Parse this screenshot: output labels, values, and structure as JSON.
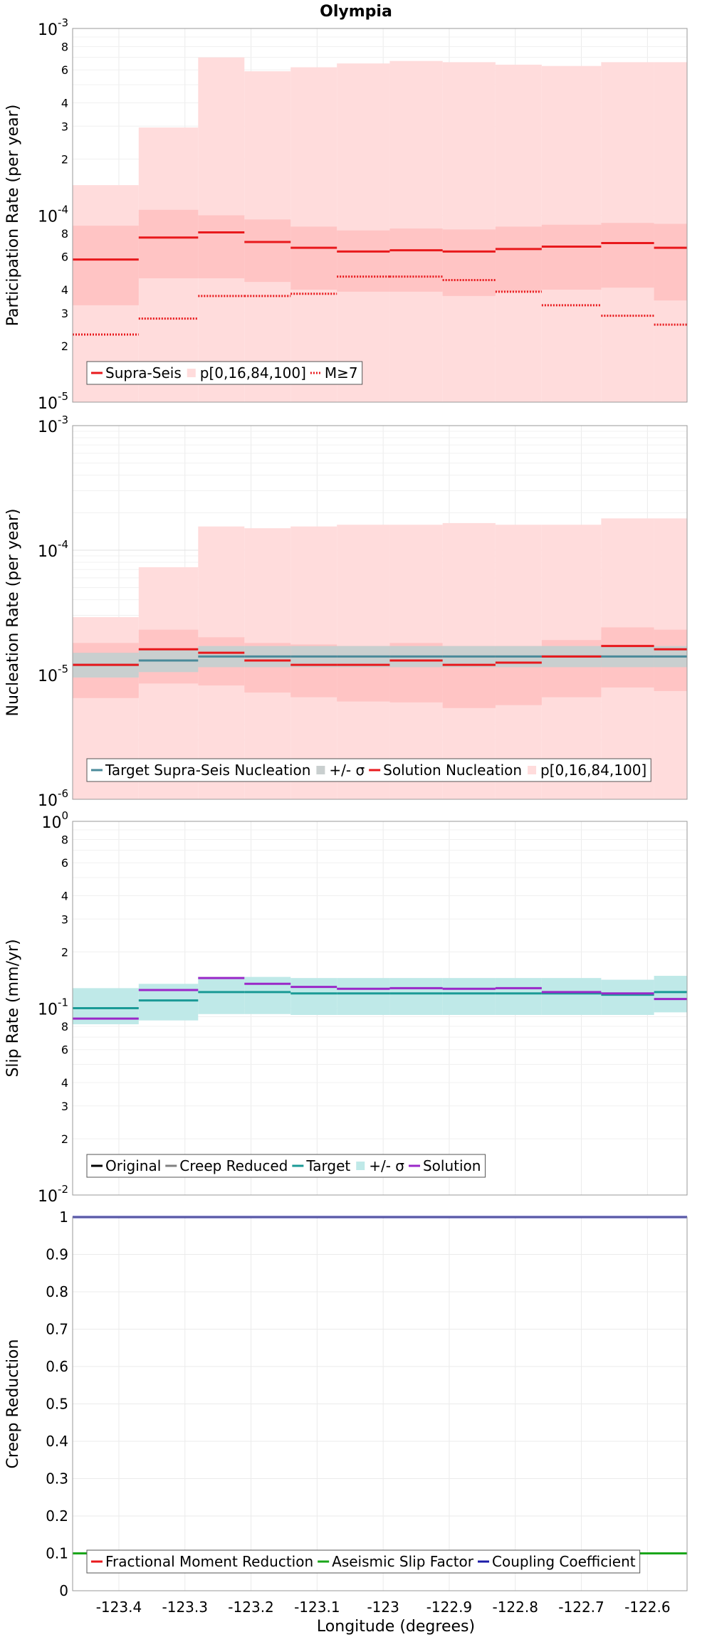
{
  "chart_data": {
    "title": "Olympia",
    "xlabel": "Longitude (degrees)",
    "x_ticks": [
      -123.4,
      -123.3,
      -123.2,
      -123.1,
      -123.0,
      -122.9,
      -122.8,
      -122.7,
      -122.6
    ],
    "x_tick_labels": [
      "-123.4",
      "-123.3",
      "-123.2",
      "-123.1",
      "-123",
      "-122.9",
      "-122.8",
      "-122.7",
      "-122.6"
    ],
    "xlim": [
      -123.47,
      -122.54
    ],
    "bin_edges": [
      -123.47,
      -123.37,
      -123.28,
      -123.21,
      -123.14,
      -123.07,
      -122.99,
      -122.91,
      -122.83,
      -122.76,
      -122.67,
      -122.59,
      -122.54
    ],
    "panels": [
      {
        "type": "step",
        "ylabel": "Participation Rate (per year)",
        "yscale": "log",
        "ylim": [
          1e-05,
          0.001
        ],
        "y_tick_labels": [
          {
            "value": 1e-05,
            "base": "10",
            "exp": "-5"
          },
          {
            "value": 0.0001,
            "base": "10",
            "exp": "-4"
          },
          {
            "value": 0.001,
            "base": "10",
            "exp": "-3"
          }
        ],
        "y_minor_labels": [
          "2",
          "3",
          "4",
          "6",
          "8"
        ],
        "legend": [
          "Supra-Seis",
          "p[0,16,84,100]",
          "M≥7"
        ],
        "series": [
          {
            "name": "Supra-Seis",
            "color": "#e8191c",
            "style": "solid",
            "values": [
              5.8e-05,
              7.6e-05,
              8.1e-05,
              7.2e-05,
              6.7e-05,
              6.4e-05,
              6.5e-05,
              6.4e-05,
              6.6e-05,
              6.8e-05,
              7.1e-05,
              6.7e-05
            ]
          },
          {
            "name": "M≥7",
            "color": "#e8191c",
            "style": "dotted",
            "values": [
              2.3e-05,
              2.8e-05,
              3.7e-05,
              3.7e-05,
              3.8e-05,
              4.7e-05,
              4.7e-05,
              4.5e-05,
              3.9e-05,
              3.3e-05,
              2.9e-05,
              2.6e-05
            ]
          }
        ],
        "bands": [
          {
            "name": "p[0,100]",
            "color": "#ffdcdc",
            "low": [
              1e-05,
              1e-05,
              1e-05,
              1e-05,
              1e-05,
              1e-05,
              1e-05,
              1e-05,
              1e-05,
              1e-05,
              1e-05,
              1e-05
            ],
            "high": [
              0.000145,
              0.000295,
              0.0007,
              0.00059,
              0.00062,
              0.00065,
              0.00067,
              0.00066,
              0.00064,
              0.00063,
              0.00066,
              0.00066
            ]
          },
          {
            "name": "p[16,84]",
            "color": "#ffc4c4",
            "low": [
              3.3e-05,
              4.6e-05,
              4.6e-05,
              4.4e-05,
              4e-05,
              3.9e-05,
              3.9e-05,
              3.7e-05,
              3.9e-05,
              4e-05,
              4.1e-05,
              3.5e-05
            ],
            "high": [
              8.8e-05,
              0.000107,
              0.0001,
              9.5e-05,
              8.7e-05,
              8.3e-05,
              8.5e-05,
              8.4e-05,
              8.7e-05,
              8.9e-05,
              9.1e-05,
              9e-05
            ]
          }
        ]
      },
      {
        "type": "step",
        "ylabel": "Nucleation Rate (per year)",
        "yscale": "log",
        "ylim": [
          1e-06,
          0.001
        ],
        "y_tick_labels": [
          {
            "value": 1e-06,
            "base": "10",
            "exp": "-6"
          },
          {
            "value": 1e-05,
            "base": "10",
            "exp": "-5"
          },
          {
            "value": 0.0001,
            "base": "10",
            "exp": "-4"
          },
          {
            "value": 0.001,
            "base": "10",
            "exp": "-3"
          }
        ],
        "legend": [
          "Target Supra-Seis Nucleation",
          "+/- σ",
          "Solution Nucleation",
          "p[0,16,84,100]"
        ],
        "series": [
          {
            "name": "Target Supra-Seis Nucleation",
            "color": "#4a8a9a",
            "style": "solid",
            "values": [
              1.2e-05,
              1.3e-05,
              1.4e-05,
              1.4e-05,
              1.4e-05,
              1.4e-05,
              1.4e-05,
              1.4e-05,
              1.4e-05,
              1.4e-05,
              1.4e-05,
              1.4e-05
            ]
          },
          {
            "name": "Solution Nucleation",
            "color": "#e8191c",
            "style": "solid",
            "values": [
              1.2e-05,
              1.6e-05,
              1.5e-05,
              1.3e-05,
              1.2e-05,
              1.2e-05,
              1.3e-05,
              1.2e-05,
              1.25e-05,
              1.4e-05,
              1.7e-05,
              1.6e-05
            ]
          }
        ],
        "bands": [
          {
            "name": "p[0,100]",
            "color": "#ffdcdc",
            "low": [
              1e-06,
              1e-06,
              1e-06,
              1e-06,
              1e-06,
              1e-06,
              1e-06,
              1e-06,
              1e-06,
              1e-06,
              1e-06,
              1e-06
            ],
            "high": [
              2.9e-05,
              7.3e-05,
              0.000155,
              0.00015,
              0.000155,
              0.00016,
              0.00016,
              0.000165,
              0.00016,
              0.00016,
              0.00018,
              0.00018
            ]
          },
          {
            "name": "p[16,84]",
            "color": "#ffc4c4",
            "low": [
              6.5e-06,
              8.5e-06,
              8.2e-06,
              7.2e-06,
              6.6e-06,
              6.1e-06,
              6e-06,
              5.4e-06,
              5.7e-06,
              6.6e-06,
              7.9e-06,
              7.4e-06
            ],
            "high": [
              1.8e-05,
              2.3e-05,
              2e-05,
              1.8e-05,
              1.75e-05,
              1.7e-05,
              1.8e-05,
              1.7e-05,
              1.7e-05,
              1.9e-05,
              2.4e-05,
              2.3e-05
            ]
          },
          {
            "name": "+/- σ",
            "color": "#c9cfcf",
            "low": [
              9.5e-06,
              1.05e-05,
              1.15e-05,
              1.15e-05,
              1.15e-05,
              1.15e-05,
              1.15e-05,
              1.15e-05,
              1.15e-05,
              1.15e-05,
              1.15e-05,
              1.15e-05
            ],
            "high": [
              1.5e-05,
              1.6e-05,
              1.7e-05,
              1.7e-05,
              1.7e-05,
              1.7e-05,
              1.7e-05,
              1.7e-05,
              1.7e-05,
              1.7e-05,
              1.7e-05,
              1.7e-05
            ]
          }
        ]
      },
      {
        "type": "step",
        "ylabel": "Slip Rate (mm/yr)",
        "yscale": "log",
        "ylim": [
          0.01,
          1
        ],
        "y_tick_labels": [
          {
            "value": 0.01,
            "base": "10",
            "exp": "-2"
          },
          {
            "value": 0.1,
            "base": "10",
            "exp": "-1"
          },
          {
            "value": 1,
            "base": "10",
            "exp": "0"
          }
        ],
        "y_minor_labels": [
          "2",
          "3",
          "4",
          "6",
          "8"
        ],
        "legend": [
          "Original",
          "Creep Reduced",
          "Target",
          "+/- σ",
          "Solution"
        ],
        "series": [
          {
            "name": "Target",
            "color": "#1a9a96",
            "style": "solid",
            "values": [
              0.1,
              0.11,
              0.122,
              0.122,
              0.12,
              0.12,
              0.12,
              0.12,
              0.12,
              0.12,
              0.118,
              0.122
            ]
          },
          {
            "name": "Solution",
            "color": "#9a28c8",
            "style": "solid",
            "values": [
              0.088,
              0.125,
              0.145,
              0.135,
              0.13,
              0.127,
              0.128,
              0.127,
              0.128,
              0.122,
              0.12,
              0.112
            ]
          }
        ],
        "bands": [
          {
            "name": "+/- σ",
            "color": "#bfe9e8",
            "low": [
              0.082,
              0.086,
              0.093,
              0.093,
              0.092,
              0.092,
              0.092,
              0.092,
              0.092,
              0.092,
              0.092,
              0.095
            ],
            "high": [
              0.128,
              0.135,
              0.147,
              0.147,
              0.145,
              0.145,
              0.145,
              0.145,
              0.145,
              0.145,
              0.142,
              0.149
            ]
          }
        ]
      },
      {
        "type": "line",
        "ylabel": "Creep Reduction",
        "yscale": "linear",
        "ylim": [
          0,
          1
        ],
        "y_ticks": [
          0,
          0.1,
          0.2,
          0.3,
          0.4,
          0.5,
          0.6,
          0.7,
          0.8,
          0.9,
          1
        ],
        "y_tick_labels": [
          "0",
          "0.1",
          "0.2",
          "0.3",
          "0.4",
          "0.5",
          "0.6",
          "0.7",
          "0.8",
          "0.9",
          "1"
        ],
        "legend": [
          "Fractional Moment Reduction",
          "Aseismic Slip Factor",
          "Coupling Coefficient"
        ],
        "series": [
          {
            "name": "Fractional Moment Reduction",
            "color": "#e8191c",
            "value": 0.1
          },
          {
            "name": "Aseismic Slip Factor",
            "color": "#1aa61a",
            "value": 0.1
          },
          {
            "name": "Coupling Coefficient",
            "color": "#1c1ca8",
            "value": 1.0
          }
        ]
      }
    ]
  },
  "legend_colors": {
    "supra_seis": "#e8191c",
    "band_light": "#ffdcdc",
    "original": "#000000",
    "creep_reduced": "#808080",
    "target_teal": "#1a9a96",
    "target_gray": "#4a8a9a",
    "sigma_gray": "#c9cfcf",
    "sigma_teal": "#bfe9e8",
    "solution_purple": "#9a28c8",
    "fmr_red": "#e8191c",
    "asf_green": "#1aa61a",
    "cc_blue": "#1c1ca8"
  }
}
